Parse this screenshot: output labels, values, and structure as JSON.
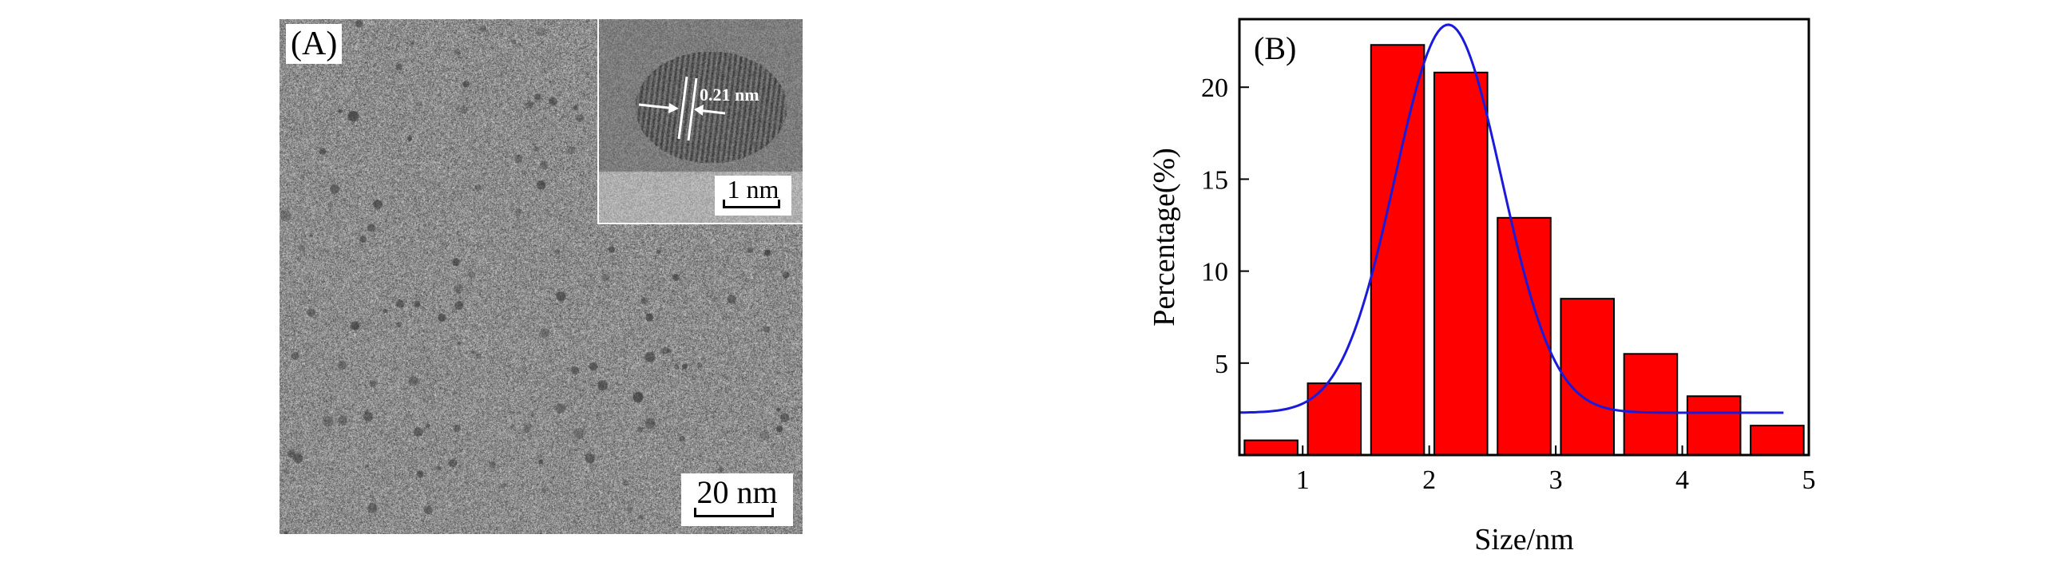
{
  "panel_a": {
    "label": "(A)",
    "inset_measure": "0.21 nm",
    "inset_scale_label": "1 nm",
    "scale_label": "20  nm"
  },
  "panel_b_label": "(B)",
  "chart_data": {
    "type": "bar",
    "title": "",
    "xlabel": "Size/nm",
    "ylabel": "Percentage(%)",
    "xlim": [
      0.5,
      5.0
    ],
    "ylim": [
      0,
      23.7
    ],
    "x_ticks": [
      1,
      2,
      3,
      4,
      5
    ],
    "y_ticks": [
      5,
      10,
      15,
      20
    ],
    "bar_width": 0.42,
    "grid": false,
    "legend": "none",
    "bar_color": "#ff0000",
    "curve_color": "#1a1adb",
    "x": [
      0.75,
      1.25,
      1.75,
      2.25,
      2.75,
      3.25,
      3.75,
      4.25,
      4.75
    ],
    "values": [
      0.8,
      3.9,
      22.3,
      20.8,
      12.9,
      8.5,
      5.5,
      3.2,
      1.6
    ],
    "fit": {
      "type": "gaussian",
      "x_range": [
        0.5,
        4.8
      ],
      "baseline": 2.3,
      "amplitude": 21.1,
      "center": 2.15,
      "sigma": 0.42
    }
  }
}
